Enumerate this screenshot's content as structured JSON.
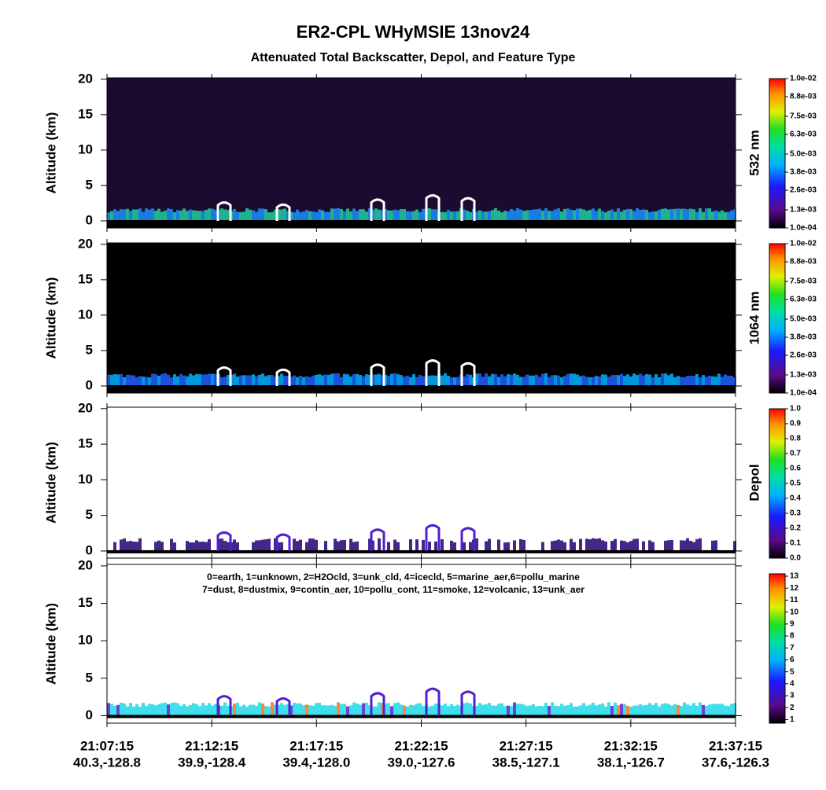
{
  "title": "ER2-CPL WHyMSIE 13nov24",
  "subtitle": "Attenuated Total Backscatter, Depol, and Feature Type",
  "chart_data": [
    {
      "type": "heatmap",
      "background": "#1c0b30",
      "y_label": "Altitude (km)",
      "ylim": [
        -1,
        20.2
      ],
      "yticks": [
        0,
        5,
        10,
        15,
        20
      ],
      "colorbar_label": "532 nm",
      "clim": [
        0.0001,
        0.01
      ],
      "cticks": [
        {
          "value": 0.0001,
          "label": "1.0e-04"
        },
        {
          "value": 0.0013,
          "label": "1.3e-03"
        },
        {
          "value": 0.0026,
          "label": "2.6e-03"
        },
        {
          "value": 0.0038,
          "label": "3.8e-03"
        },
        {
          "value": 0.005,
          "label": "5.0e-03"
        },
        {
          "value": 0.0063,
          "label": "6.3e-03"
        },
        {
          "value": 0.0075,
          "label": "7.5e-03"
        },
        {
          "value": 0.0088,
          "label": "8.8e-03"
        },
        {
          "value": 0.01,
          "label": "1.0e-02"
        }
      ]
    },
    {
      "type": "heatmap",
      "background": "#000000",
      "y_label": "Altitude (km)",
      "ylim": [
        -1,
        20.2
      ],
      "yticks": [
        0,
        5,
        10,
        15,
        20
      ],
      "colorbar_label": "1064 nm",
      "clim": [
        0.0001,
        0.01
      ],
      "cticks": [
        {
          "value": 0.0001,
          "label": "1.0e-04"
        },
        {
          "value": 0.0013,
          "label": "1.3e-03"
        },
        {
          "value": 0.0026,
          "label": "2.6e-03"
        },
        {
          "value": 0.0038,
          "label": "3.8e-03"
        },
        {
          "value": 0.005,
          "label": "5.0e-03"
        },
        {
          "value": 0.0063,
          "label": "6.3e-03"
        },
        {
          "value": 0.0075,
          "label": "7.5e-03"
        },
        {
          "value": 0.0088,
          "label": "8.8e-03"
        },
        {
          "value": 0.01,
          "label": "1.0e-02"
        }
      ]
    },
    {
      "type": "heatmap",
      "background": "#ffffff",
      "y_label": "Altitude (km)",
      "ylim": [
        -1,
        20.2
      ],
      "yticks": [
        0,
        5,
        10,
        15,
        20
      ],
      "colorbar_label": "Depol",
      "clim": [
        0,
        1
      ],
      "cticks": [
        {
          "value": 0,
          "label": "0.0"
        },
        0.1,
        0.2,
        0.3,
        0.4,
        0.5,
        0.6,
        0.7,
        0.8,
        0.9,
        {
          "value": 1,
          "label": "1.0"
        }
      ]
    },
    {
      "type": "heatmap",
      "background": "#ffffff",
      "y_label": "Altitude (km)",
      "ylim": [
        -1,
        20.2
      ],
      "yticks": [
        0,
        5,
        10,
        15,
        20
      ],
      "clim": [
        0.7,
        13.2
      ],
      "cticks": [
        1,
        2,
        3,
        4,
        5,
        6,
        7,
        8,
        9,
        10,
        11,
        12,
        13
      ],
      "annotations": [
        "0=earth, 1=unknown, 2=H2Ocld, 3=unk_cld, 4=icecld, 5=marine_aer,6=pollu_marine",
        "7=dust, 8=dustmix, 9=contin_aer, 10=pollu_cont, 11=smoke, 12=volcanic, 13=unk_aer"
      ],
      "categories": [
        "21:07:15",
        "21:12:15",
        "21:17:15",
        "21:22:15",
        "21:27:15",
        "21:32:15",
        "21:37:15"
      ],
      "locations": [
        "40.3,-128.8",
        "39.9,-128.4",
        "39.4,-128.0",
        "39.0,-127.6",
        "38.5,-127.1",
        "38.1,-126.7",
        "37.6,-126.3"
      ]
    }
  ]
}
